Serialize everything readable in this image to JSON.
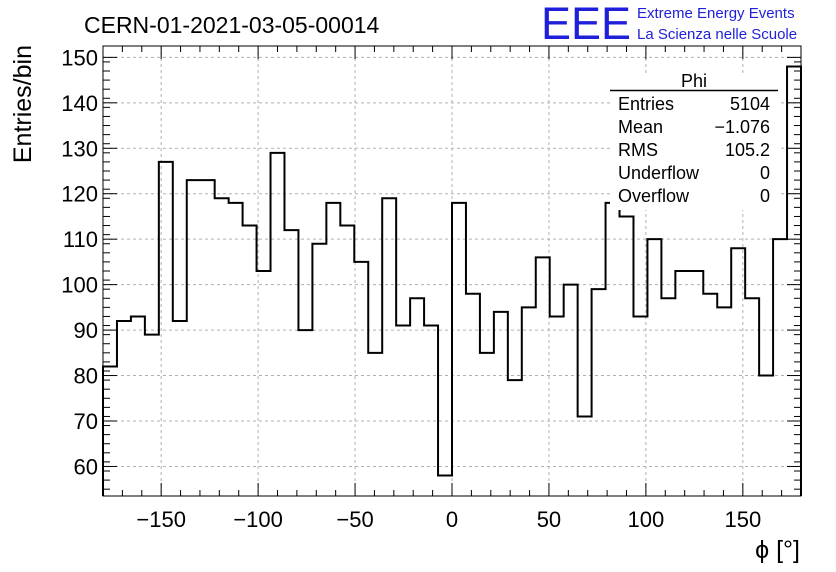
{
  "header": {
    "title": "CERN-01-2021-03-05-00014",
    "logo_text": "EEE",
    "logo_line1": "Extreme Energy Events",
    "logo_line2": "La Scienza nelle Scuole",
    "logo_color": "#1f1fd9"
  },
  "stats": {
    "name": "Phi",
    "rows": [
      {
        "label": "Entries",
        "value": "5104"
      },
      {
        "label": "Mean",
        "value": "−1.076"
      },
      {
        "label": "RMS",
        "value": "105.2"
      },
      {
        "label": "Underflow",
        "value": "0"
      },
      {
        "label": "Overflow",
        "value": "0"
      }
    ]
  },
  "chart_data": {
    "type": "histogram",
    "xlabel": "ϕ [°]",
    "ylabel": "Entries/bin",
    "xlim": [
      -180,
      180
    ],
    "ylim": [
      53.5,
      152.5
    ],
    "bin_width": 7.2,
    "x_ticks": [
      -150,
      -100,
      -50,
      0,
      50,
      100,
      150
    ],
    "x_tick_labels": [
      "−150",
      "−100",
      "−50",
      "0",
      "50",
      "100",
      "150"
    ],
    "y_ticks": [
      60,
      70,
      80,
      90,
      100,
      110,
      120,
      130,
      140,
      150
    ],
    "y_tick_labels": [
      "60",
      "70",
      "80",
      "90",
      "100",
      "110",
      "120",
      "130",
      "140",
      "150"
    ],
    "grid": true,
    "values": [
      82,
      92,
      93,
      89,
      127,
      92,
      123,
      123,
      119,
      118,
      113,
      103,
      129,
      112,
      90,
      109,
      118,
      113,
      105,
      85,
      119,
      91,
      97,
      91,
      58,
      118,
      98,
      85,
      94,
      79,
      95,
      106,
      93,
      100,
      71,
      99,
      118,
      115,
      93,
      110,
      97,
      103,
      103,
      98,
      95,
      108,
      97,
      80,
      110,
      148
    ]
  }
}
